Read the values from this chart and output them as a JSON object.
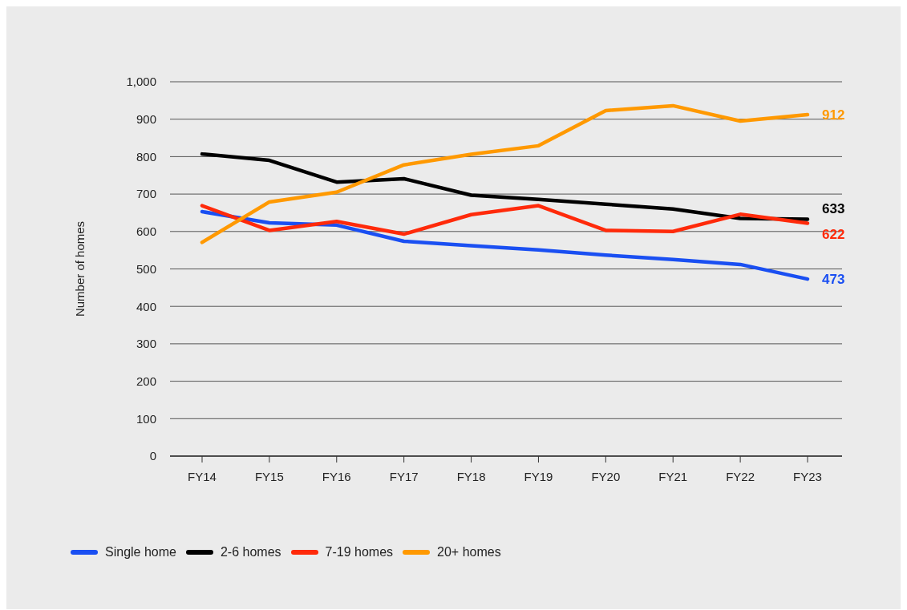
{
  "chart_data": {
    "type": "line",
    "ylabel": "Number of homes",
    "categories": [
      "FY14",
      "FY15",
      "FY16",
      "FY17",
      "FY18",
      "FY19",
      "FY20",
      "FY21",
      "FY22",
      "FY23"
    ],
    "series": [
      {
        "name": "Single home",
        "color": "#1a4ff2",
        "values": [
          653,
          623,
          617,
          574,
          562,
          551,
          537,
          525,
          512,
          473
        ],
        "value_labels": [
          null,
          null,
          null,
          null,
          null,
          null,
          null,
          null,
          null,
          "473"
        ]
      },
      {
        "name": "2-6 homes",
        "color": "#000000",
        "values": [
          807,
          790,
          732,
          741,
          697,
          686,
          673,
          660,
          635,
          633
        ],
        "value_labels": [
          null,
          null,
          null,
          null,
          null,
          null,
          null,
          null,
          null,
          "633"
        ]
      },
      {
        "name": "7-19 homes",
        "color": "#ff2a0a",
        "values": [
          669,
          603,
          627,
          593,
          645,
          669,
          603,
          600,
          646,
          622
        ],
        "value_labels": [
          null,
          null,
          null,
          null,
          null,
          null,
          null,
          null,
          null,
          "622"
        ]
      },
      {
        "name": "20+ homes",
        "color": "#ff9900",
        "values": [
          571,
          679,
          705,
          778,
          806,
          829,
          923,
          936,
          895,
          912
        ],
        "value_labels": [
          null,
          null,
          null,
          null,
          null,
          null,
          null,
          null,
          null,
          "912"
        ]
      }
    ],
    "ylim": [
      0,
      1000
    ],
    "yticks": [
      0,
      100,
      200,
      300,
      400,
      500,
      600,
      700,
      800,
      900,
      {
        "value": 1000,
        "label": "1,000"
      }
    ],
    "grid": "y",
    "legend": "bottom left",
    "marker": "none",
    "line_style": "solid"
  }
}
